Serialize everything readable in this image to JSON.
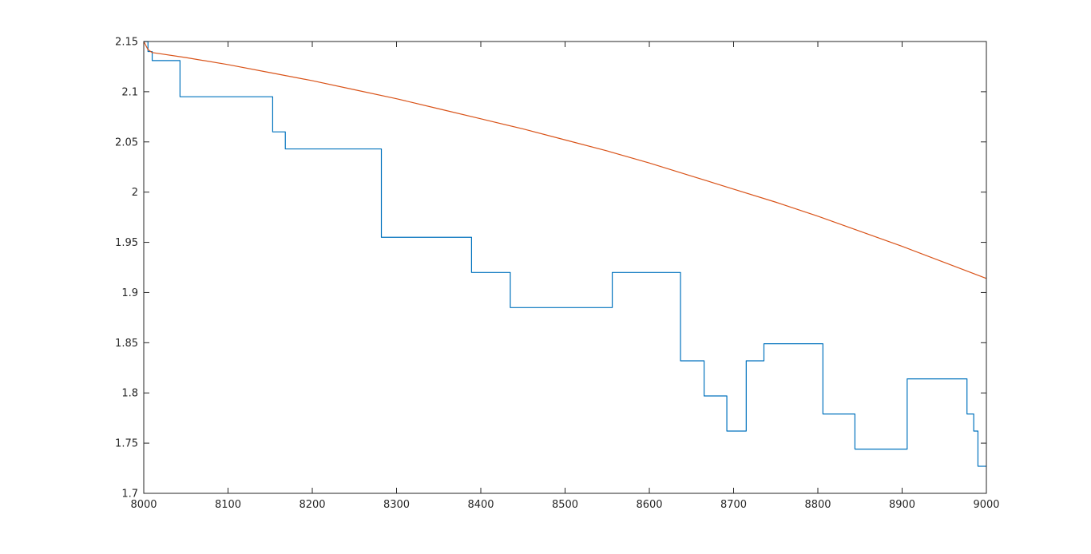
{
  "chart_data": {
    "type": "line",
    "title": "",
    "xlabel": "",
    "ylabel": "",
    "xlim": [
      8000,
      9000
    ],
    "ylim": [
      1.7,
      2.15
    ],
    "grid": false,
    "legend": "none",
    "x_ticks": [
      8000,
      8100,
      8200,
      8300,
      8400,
      8500,
      8600,
      8700,
      8800,
      8900,
      9000
    ],
    "x_tick_labels": [
      "8000",
      "8100",
      "8200",
      "8300",
      "8400",
      "8500",
      "8600",
      "8700",
      "8800",
      "8900",
      "9000"
    ],
    "y_ticks": [
      1.7,
      1.75,
      1.8,
      1.85,
      1.9,
      1.95,
      2.0,
      2.05,
      2.1,
      2.15
    ],
    "y_tick_labels": [
      "1.7",
      "1.75",
      "1.8",
      "1.85",
      "1.9",
      "1.95",
      "2",
      "2.05",
      "2.1",
      "2.15"
    ],
    "series": [
      {
        "style": "step",
        "color": "#0072BD",
        "x": [
          8000,
          8005,
          8005,
          8010,
          8010,
          8043,
          8043,
          8153,
          8153,
          8168,
          8168,
          8282,
          8282,
          8389,
          8389,
          8435,
          8435,
          8556,
          8556,
          8637,
          8637,
          8665,
          8665,
          8692,
          8692,
          8715,
          8715,
          8736,
          8736,
          8806,
          8806,
          8844,
          8844,
          8906,
          8906,
          8977,
          8977,
          8985,
          8985,
          8990,
          8990,
          9000
        ],
        "y": [
          2.15,
          2.15,
          2.14,
          2.14,
          2.131,
          2.131,
          2.095,
          2.095,
          2.06,
          2.06,
          2.043,
          2.043,
          1.955,
          1.955,
          1.92,
          1.92,
          1.885,
          1.885,
          1.92,
          1.92,
          1.832,
          1.832,
          1.797,
          1.797,
          1.762,
          1.762,
          1.832,
          1.832,
          1.849,
          1.849,
          1.779,
          1.779,
          1.744,
          1.744,
          1.814,
          1.814,
          1.779,
          1.779,
          1.762,
          1.762,
          1.727,
          1.727
        ]
      },
      {
        "style": "line",
        "color": "#D95319",
        "x": [
          8000,
          8005,
          8010,
          8050,
          8100,
          8150,
          8200,
          8250,
          8300,
          8350,
          8400,
          8450,
          8500,
          8550,
          8600,
          8650,
          8700,
          8750,
          8800,
          8850,
          8900,
          8950,
          9000
        ],
        "y": [
          2.15,
          2.142,
          2.139,
          2.134,
          2.127,
          2.119,
          2.111,
          2.102,
          2.093,
          2.083,
          2.073,
          2.063,
          2.052,
          2.041,
          2.029,
          2.016,
          2.003,
          1.99,
          1.976,
          1.961,
          1.946,
          1.93,
          1.914
        ]
      }
    ]
  }
}
